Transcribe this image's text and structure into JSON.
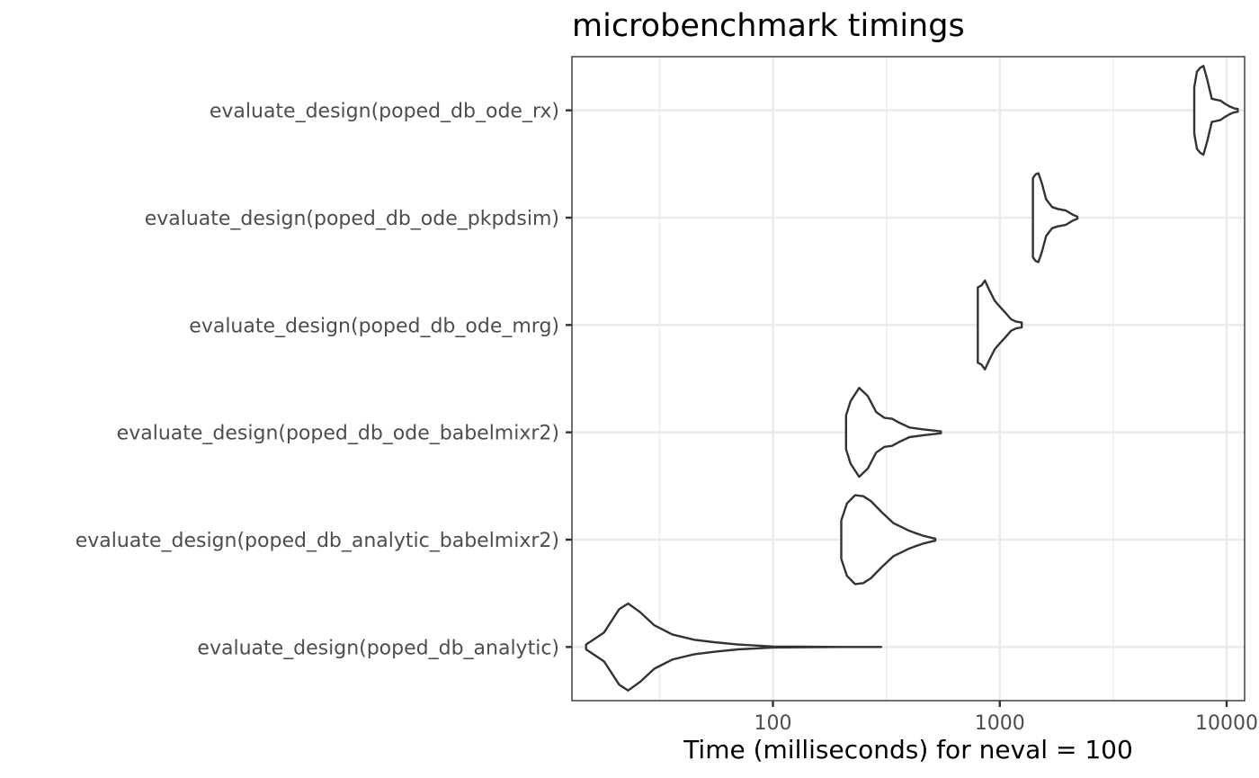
{
  "chart_data": {
    "type": "violin",
    "title": "microbenchmark timings",
    "xlabel": "Time (milliseconds) for neval = 100",
    "ylabel": "",
    "x_scale": "log10",
    "xlim": [
      13,
      12000
    ],
    "x_ticks": [
      100,
      1000,
      10000
    ],
    "x_tick_labels": [
      "100",
      "1000",
      "10000"
    ],
    "grid": true,
    "categories": [
      "evaluate_design(poped_db_analytic)",
      "evaluate_design(poped_db_analytic_babelmixr2)",
      "evaluate_design(poped_db_ode_babelmixr2)",
      "evaluate_design(poped_db_ode_mrg)",
      "evaluate_design(poped_db_ode_pkpdsim)",
      "evaluate_design(poped_db_ode_rx)"
    ],
    "series": [
      {
        "category": "evaluate_design(poped_db_analytic)",
        "min": 15,
        "max": 300,
        "density": [
          [
            15,
            0.05
          ],
          [
            18,
            0.3
          ],
          [
            21,
            0.78
          ],
          [
            23,
            0.9
          ],
          [
            26,
            0.72
          ],
          [
            30,
            0.45
          ],
          [
            36,
            0.26
          ],
          [
            45,
            0.15
          ],
          [
            55,
            0.1
          ],
          [
            70,
            0.05
          ],
          [
            100,
            0.01
          ],
          [
            200,
            0.0
          ],
          [
            300,
            0.0
          ]
        ]
      },
      {
        "category": "evaluate_design(poped_db_analytic_babelmixr2)",
        "min": 200,
        "max": 520,
        "density": [
          [
            200,
            0.4
          ],
          [
            212,
            0.75
          ],
          [
            230,
            0.92
          ],
          [
            250,
            0.9
          ],
          [
            270,
            0.8
          ],
          [
            300,
            0.58
          ],
          [
            340,
            0.34
          ],
          [
            400,
            0.18
          ],
          [
            460,
            0.08
          ],
          [
            520,
            0.02
          ]
        ]
      },
      {
        "category": "evaluate_design(poped_db_ode_babelmixr2)",
        "min": 210,
        "max": 550,
        "density": [
          [
            210,
            0.35
          ],
          [
            220,
            0.65
          ],
          [
            240,
            0.92
          ],
          [
            262,
            0.75
          ],
          [
            285,
            0.42
          ],
          [
            310,
            0.3
          ],
          [
            335,
            0.28
          ],
          [
            360,
            0.2
          ],
          [
            400,
            0.1
          ],
          [
            460,
            0.06
          ],
          [
            550,
            0.02
          ]
        ]
      },
      {
        "category": "evaluate_design(poped_db_ode_mrg)",
        "min": 800,
        "max": 1250,
        "density": [
          [
            800,
            0.78
          ],
          [
            830,
            0.82
          ],
          [
            860,
            0.92
          ],
          [
            900,
            0.72
          ],
          [
            950,
            0.5
          ],
          [
            1000,
            0.38
          ],
          [
            1060,
            0.25
          ],
          [
            1120,
            0.12
          ],
          [
            1180,
            0.07
          ],
          [
            1250,
            0.05
          ]
        ]
      },
      {
        "category": "evaluate_design(poped_db_ode_pkpdsim)",
        "min": 1400,
        "max": 2200,
        "density": [
          [
            1400,
            0.82
          ],
          [
            1440,
            0.9
          ],
          [
            1480,
            0.92
          ],
          [
            1530,
            0.72
          ],
          [
            1600,
            0.38
          ],
          [
            1700,
            0.22
          ],
          [
            1800,
            0.18
          ],
          [
            1950,
            0.15
          ],
          [
            2100,
            0.06
          ],
          [
            2200,
            0.02
          ]
        ]
      },
      {
        "category": "evaluate_design(poped_db_ode_rx)",
        "min": 7200,
        "max": 11200,
        "density": [
          [
            7200,
            0.48
          ],
          [
            7400,
            0.8
          ],
          [
            7650,
            0.88
          ],
          [
            7900,
            0.92
          ],
          [
            8200,
            0.65
          ],
          [
            8600,
            0.24
          ],
          [
            9000,
            0.22
          ],
          [
            9400,
            0.2
          ],
          [
            9800,
            0.14
          ],
          [
            10300,
            0.08
          ],
          [
            10800,
            0.04
          ],
          [
            11200,
            0.03
          ]
        ]
      }
    ]
  }
}
